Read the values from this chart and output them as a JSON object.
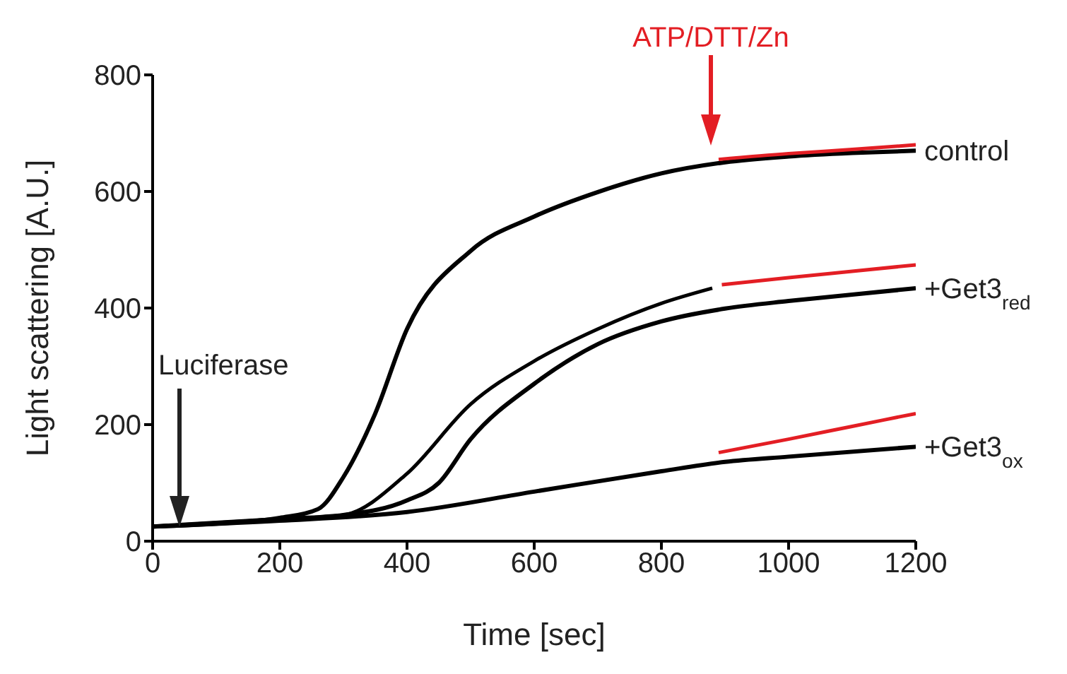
{
  "chart_data": {
    "type": "line",
    "xlabel": "Time [sec]",
    "ylabel": "Light scattering [A.U.]",
    "xlim": [
      0,
      1200
    ],
    "ylim": [
      0,
      800
    ],
    "xticks": [
      0,
      200,
      400,
      600,
      800,
      1000,
      1200
    ],
    "yticks": [
      0,
      200,
      400,
      600,
      800
    ],
    "marker": "none",
    "line_style": "solid",
    "series": [
      {
        "name": "control",
        "color": "#000000",
        "x": [
          0,
          100,
          200,
          260,
          300,
          350,
          400,
          500,
          600,
          700,
          800,
          900,
          1000,
          1100,
          1200
        ],
        "values": [
          25,
          30,
          40,
          55,
          110,
          219,
          364,
          498,
          557,
          599,
          631,
          650,
          660,
          666,
          670
        ]
      },
      {
        "color": "#000000",
        "x": [
          0,
          200,
          300,
          400,
          500,
          600,
          700,
          800,
          880
        ],
        "values": [
          25,
          38,
          45,
          116,
          235,
          309,
          364,
          408,
          434
        ]
      },
      {
        "name": "+Get3$_{red}$",
        "color": "#000000",
        "x": [
          0,
          200,
          300,
          400,
          450,
          500,
          600,
          700,
          800,
          900,
          1000,
          1100,
          1200
        ],
        "values": [
          25,
          38,
          45,
          70,
          100,
          175,
          270,
          338,
          377,
          399,
          412,
          423,
          434
        ]
      },
      {
        "name": "+Get3$_{ox}$",
        "color": "#000000",
        "x": [
          0,
          200,
          400,
          600,
          800,
          900,
          1000,
          1200
        ],
        "values": [
          25,
          35,
          50,
          85,
          120,
          136,
          145,
          162
        ]
      },
      {
        "color": "#e31e24",
        "x": [
          890,
          1000,
          1100,
          1200
        ],
        "values": [
          655,
          665,
          672,
          680
        ]
      },
      {
        "color": "#e31e24",
        "x": [
          895,
          1000,
          1100,
          1200
        ],
        "values": [
          440,
          452,
          463,
          474
        ]
      },
      {
        "color": "#e31e24",
        "x": [
          890,
          1000,
          1100,
          1200
        ],
        "values": [
          152,
          175,
          197,
          219
        ]
      }
    ],
    "annotations": [
      "Luciferase",
      "ATP/DTT/Zn"
    ]
  }
}
